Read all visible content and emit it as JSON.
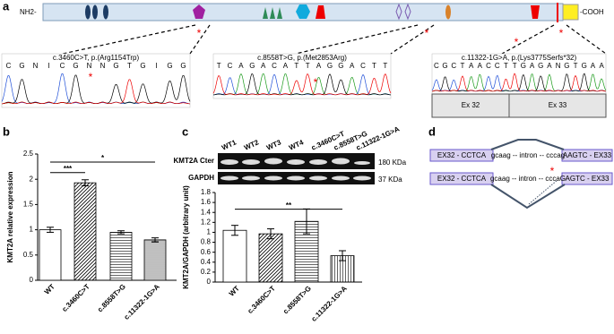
{
  "panel_labels": [
    "a",
    "b",
    "c",
    "d"
  ],
  "protein": {
    "n_term": "NH2-",
    "c_term": "-COOH",
    "asterisks": [
      "*",
      "*",
      "*"
    ]
  },
  "chromatograms": [
    {
      "title": "c.3460C>T, p.(Arg1154Trp)",
      "sequence": [
        "C",
        "G",
        "N",
        "I",
        "C",
        "G",
        "N",
        "N",
        "G",
        "T",
        "G",
        "I",
        "G",
        "G"
      ],
      "asterisk": "*"
    },
    {
      "title": "c.8558T>G, p.(Met2853Arg)",
      "sequence": [
        "T",
        "C",
        "A",
        "G",
        "A",
        "C",
        "A",
        "T",
        "T",
        "A",
        "G",
        "G",
        "A",
        "C",
        "T",
        "T"
      ],
      "asterisk": "*"
    },
    {
      "title": "c.11322-1G>A, p.(Lys3775Serfs*32)",
      "sequence": [
        "C",
        "G",
        "C",
        "T",
        "A",
        "A",
        "C",
        "C",
        "T",
        "T",
        "G",
        "A",
        "G",
        "A",
        "N",
        "G",
        "T",
        "G",
        "A",
        "A"
      ],
      "asterisk": "*",
      "exons": [
        "Ex 32",
        "Ex 33"
      ]
    }
  ],
  "chart_data": [
    {
      "type": "bar",
      "ylabel": "KMT2A relative expression",
      "categories": [
        "WT",
        "c.3460C>T",
        "c.8558T>G",
        "c.11322-1G>A"
      ],
      "values": [
        1.0,
        1.93,
        0.95,
        0.8
      ],
      "errors": [
        0.05,
        0.06,
        0.03,
        0.04
      ],
      "patterns": [
        "none",
        "diagonal",
        "horizontal",
        "horizontal-dense"
      ],
      "ylim": [
        0,
        2.5
      ],
      "yticks": [
        0,
        0.5,
        1,
        1.5,
        2,
        2.5
      ],
      "significance": [
        {
          "label": "***",
          "between": [
            0,
            1
          ]
        },
        {
          "label": "*",
          "between": [
            0,
            3
          ]
        }
      ]
    },
    {
      "type": "bar",
      "ylabel": "KMT2A/GAPDH (arbitrary unit)",
      "categories": [
        "WT",
        "c.3460C>T",
        "c.8558T>G",
        "c.11322-1G>A"
      ],
      "values": [
        1.04,
        0.97,
        1.22,
        0.53
      ],
      "errors": [
        0.1,
        0.1,
        0.25,
        0.1
      ],
      "patterns": [
        "none",
        "diagonal",
        "horizontal",
        "vertical"
      ],
      "ylim": [
        0,
        1.8
      ],
      "yticks": [
        0,
        0.2,
        0.4,
        0.6,
        0.8,
        1,
        1.2,
        1.4,
        1.6,
        1.8
      ],
      "significance": [
        {
          "label": "**",
          "between": [
            0,
            3
          ]
        }
      ]
    }
  ],
  "blot": {
    "lanes": [
      "WT1",
      "WT2",
      "WT3",
      "WT4",
      "c.3460C>T",
      "c.8558T>G",
      "c.11322-1G>A"
    ],
    "rows": [
      "KMT2A Cter",
      "GAPDH"
    ],
    "sizes": [
      "180 KDa",
      "37 KDa"
    ]
  },
  "splicing": {
    "rows": [
      {
        "left": "EX32 - CCTCA",
        "intron": "gcaag -- intron -- cccag",
        "right": "AAGTC - EX33"
      },
      {
        "left": "EX32 - CCTCA",
        "intron": "gcaag -- intron -- cccaG",
        "right": "AGTC - EX33"
      }
    ],
    "asterisk": "*"
  }
}
